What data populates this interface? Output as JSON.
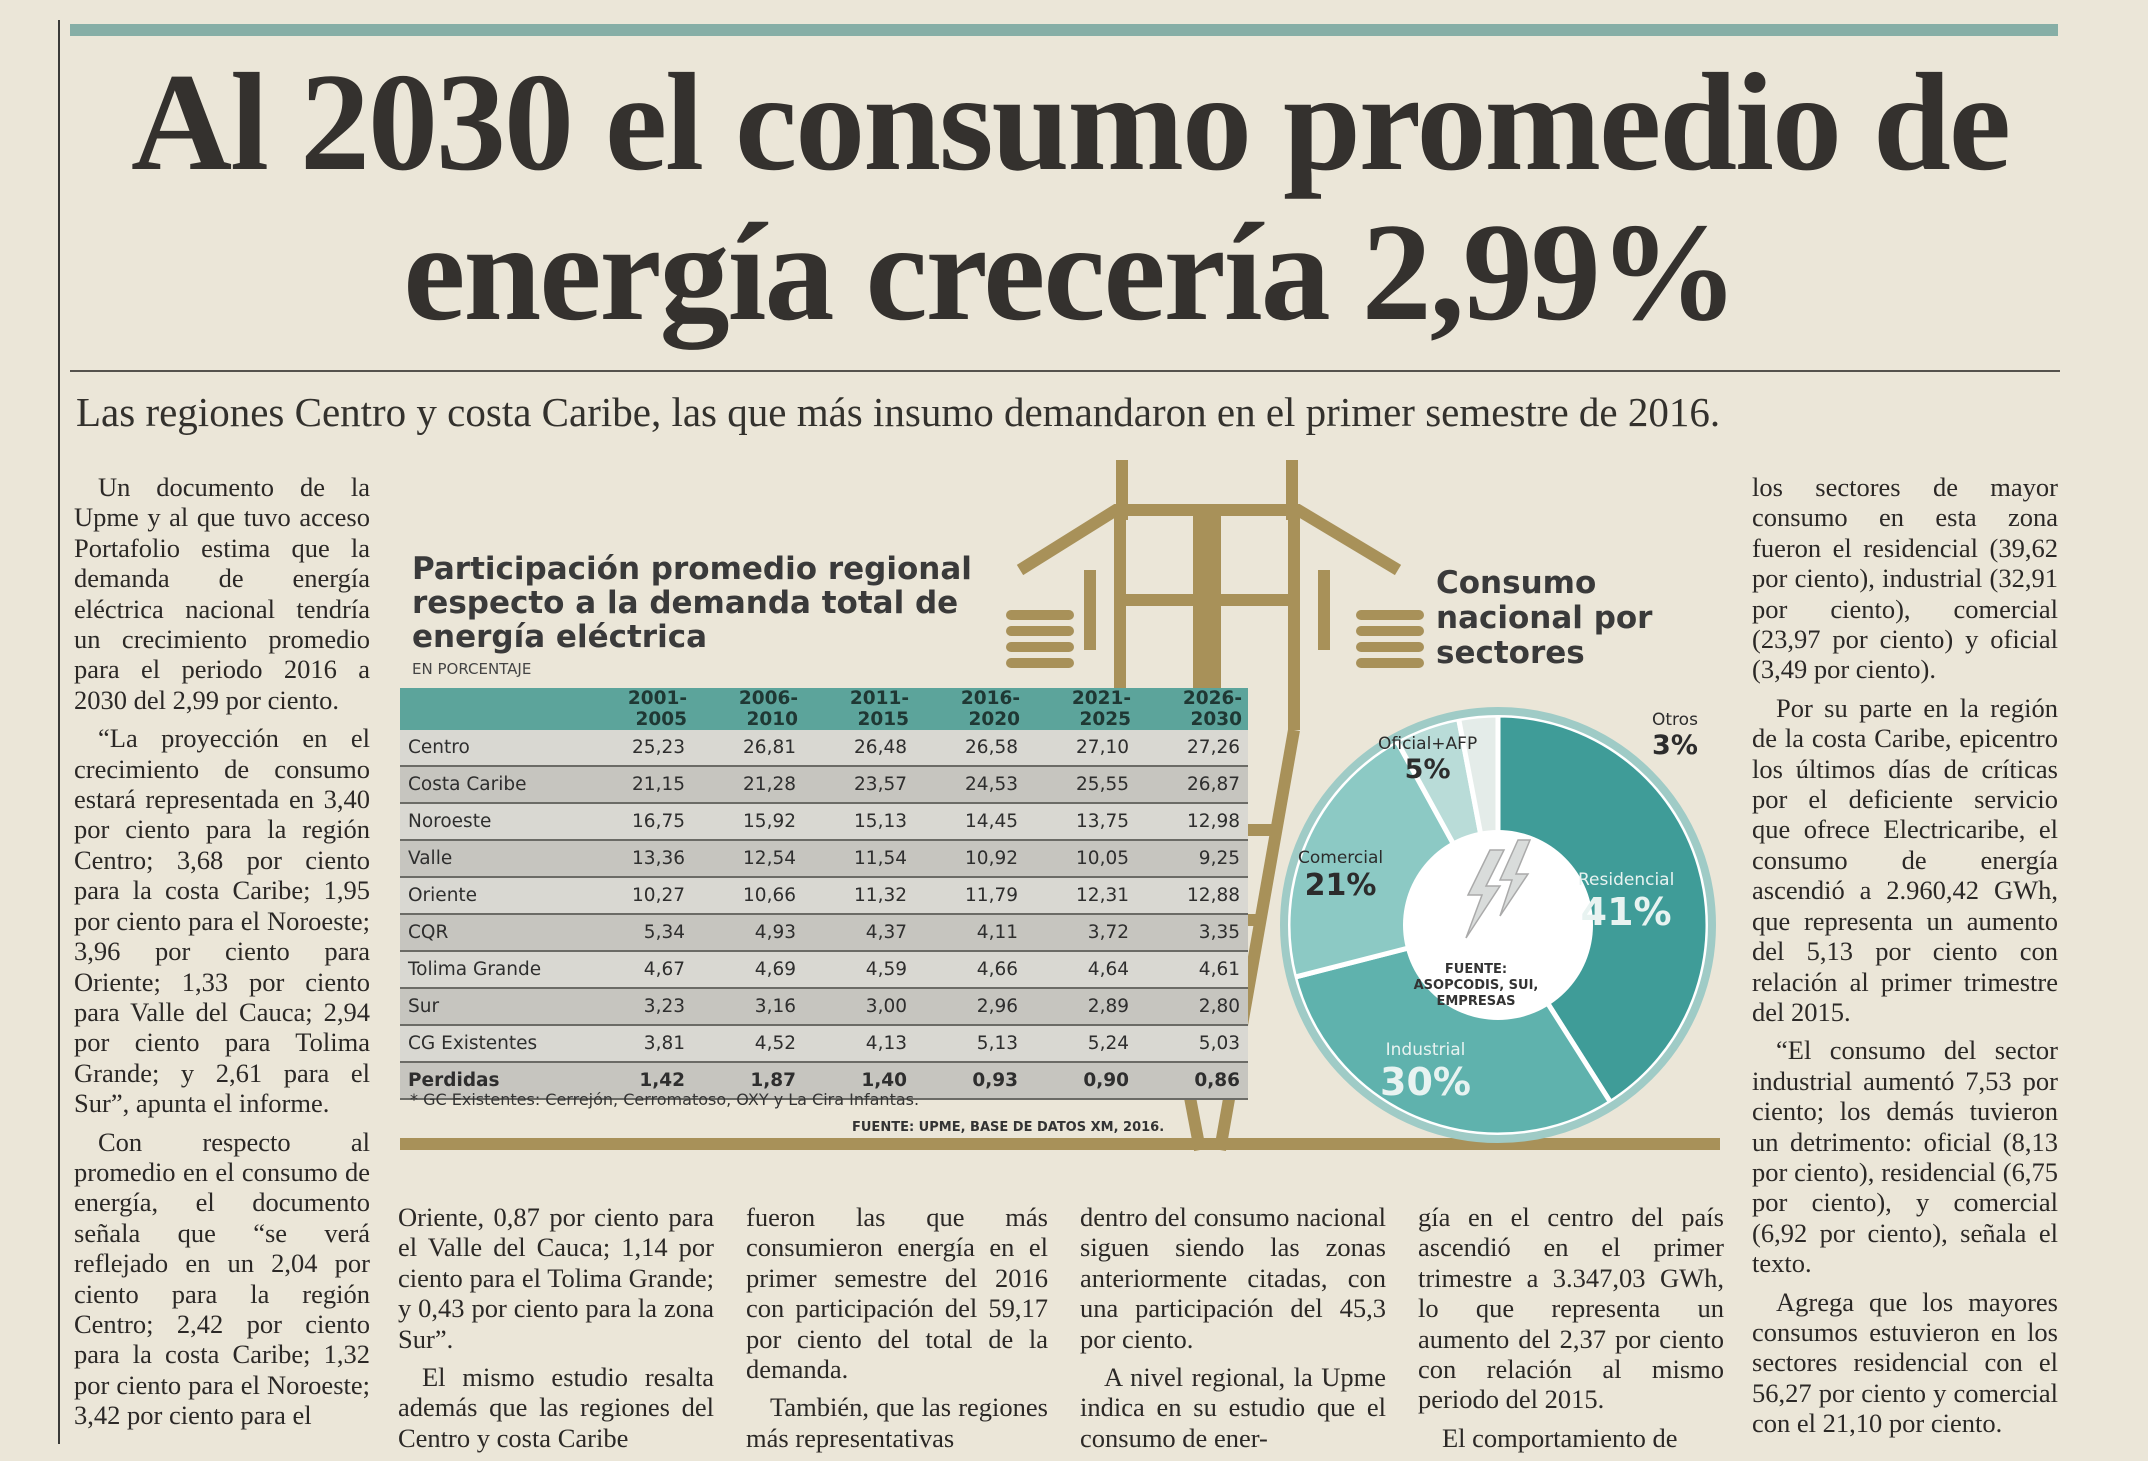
{
  "headline": "Al 2030 el consumo promedio de energía crecería 2,99%",
  "subtitle": "Las regiones Centro y costa Caribe, las que más insumo demandaron en el primer semestre de 2016.",
  "columns": {
    "left": [
      "Un documento de la Upme y al que tuvo acceso Portafolio estima que la demanda de energía eléctrica nacional tendría un crecimiento promedio para el periodo 2016 a 2030 del 2,99 por ciento.",
      "“La proyección en el crecimiento de consumo estará representada en 3,40 por ciento para la región Centro; 3,68 por ciento para la costa Caribe; 1,95 por ciento para el Noroeste; 3,96 por ciento para Oriente; 1,33 por ciento para Valle del Cauca; 2,94 por ciento para Tolima Grande; y 2,61 para el Sur”, apunta el informe.",
      "Con respecto al promedio en el consumo de energía, el documento señala que “se verá reflejado en un 2,04 por ciento para la región Centro; 2,42 por ciento para la costa Caribe; 1,32 por ciento para el Noroeste; 3,42 por ciento para el"
    ],
    "bottom1": [
      "Oriente, 0,87 por ciento para el Valle del Cauca; 1,14 por ciento para el Tolima Grande; y 0,43 por ciento para la zona Sur”.",
      "El mismo estudio resalta además que las regiones del Centro y costa Caribe"
    ],
    "bottom2": [
      "fueron las que más consumieron energía en el primer semestre del 2016 con participación del 59,17 por ciento del total de la demanda.",
      "También, que las regiones más representativas"
    ],
    "bottom3": [
      "dentro del consumo nacional siguen siendo las zonas anteriormente citadas, con una participación del 45,3 por ciento.",
      "A nivel regional, la Upme indica en su estudio que el consumo de ener-"
    ],
    "bottom4": [
      "gía en el centro del país ascendió en el primer trimestre a 3.347,03 GWh, lo que representa un aumento del 2,37 por ciento con relación al mismo periodo del 2015.",
      "El comportamiento de"
    ],
    "right": [
      "los sectores de mayor consumo en esta zona fueron el residencial (39,62 por ciento), industrial (32,91 por ciento), comercial (23,97 por ciento) y oficial (3,49 por ciento).",
      "Por su parte en la región de la costa Caribe, epicentro los últimos días de críticas por el deficiente servicio que ofrece Electricaribe, el consumo de energía ascendió a 2.960,42 GWh, que representa un aumento del 5,13 por ciento con relación al primer trimestre del 2015.",
      "“El consumo del sector industrial aumentó 7,53 por ciento; los demás tuvieron un detrimento: oficial (8,13 por ciento), residencial (6,75 por ciento), y comercial (6,92 por ciento), señala el texto.",
      "Agrega que los mayores consumos estuvieron en los sectores residencial con el 56,27 por ciento y comercial con el 21,10 por ciento."
    ]
  },
  "table": {
    "title": "Participación promedio regional respecto a la demanda total de energía eléctrica",
    "subtitle": "EN PORCENTAJE",
    "headers": [
      "",
      "2001-2005",
      "2006-2010",
      "2011-2015",
      "2016-2020",
      "2021-2025",
      "2026-2030"
    ],
    "rows": [
      [
        "Centro",
        "25,23",
        "26,81",
        "26,48",
        "26,58",
        "27,10",
        "27,26"
      ],
      [
        "Costa Caribe",
        "21,15",
        "21,28",
        "23,57",
        "24,53",
        "25,55",
        "26,87"
      ],
      [
        "Noroeste",
        "16,75",
        "15,92",
        "15,13",
        "14,45",
        "13,75",
        "12,98"
      ],
      [
        "Valle",
        "13,36",
        "12,54",
        "11,54",
        "10,92",
        "10,05",
        "9,25"
      ],
      [
        "Oriente",
        "10,27",
        "10,66",
        "11,32",
        "11,79",
        "12,31",
        "12,88"
      ],
      [
        "CQR",
        "5,34",
        "4,93",
        "4,37",
        "4,11",
        "3,72",
        "3,35"
      ],
      [
        "Tolima Grande",
        "4,67",
        "4,69",
        "4,59",
        "4,66",
        "4,64",
        "4,61"
      ],
      [
        "Sur",
        "3,23",
        "3,16",
        "3,00",
        "2,96",
        "2,89",
        "2,80"
      ],
      [
        "CG Existentes",
        "3,81",
        "4,52",
        "4,13",
        "5,13",
        "5,24",
        "5,03"
      ],
      [
        "Perdidas",
        "1,42",
        "1,87",
        "1,40",
        "0,93",
        "0,90",
        "0,86"
      ]
    ],
    "footnote": "* GC Existentes: Cerrejón, Cerromatoso, OXY y La Cira Infantas.",
    "source": "FUENTE: UPME, BASE DE DATOS XM, 2016."
  },
  "pie": {
    "title": "Consumo nacional por sectores",
    "source": "FUENTE: ASOPCODIS, SUI, EMPRESAS",
    "slices": [
      {
        "name": "Residencial",
        "value": 41,
        "label": "41%",
        "color": "#3f9c98"
      },
      {
        "name": "Industrial",
        "value": 30,
        "label": "30%",
        "color": "#5fb2ad"
      },
      {
        "name": "Comercial",
        "value": 21,
        "label": "21%",
        "color": "#8cc9c4"
      },
      {
        "name": "Oficial+AFP",
        "value": 5,
        "label": "5%",
        "color": "#b9dcd8"
      },
      {
        "name": "Otros",
        "value": 3,
        "label": "3%",
        "color": "#e4ece9"
      }
    ]
  },
  "colors": {
    "accent": "#86aea6",
    "table_header": "#5ca49b",
    "tower": "#a89159"
  }
}
